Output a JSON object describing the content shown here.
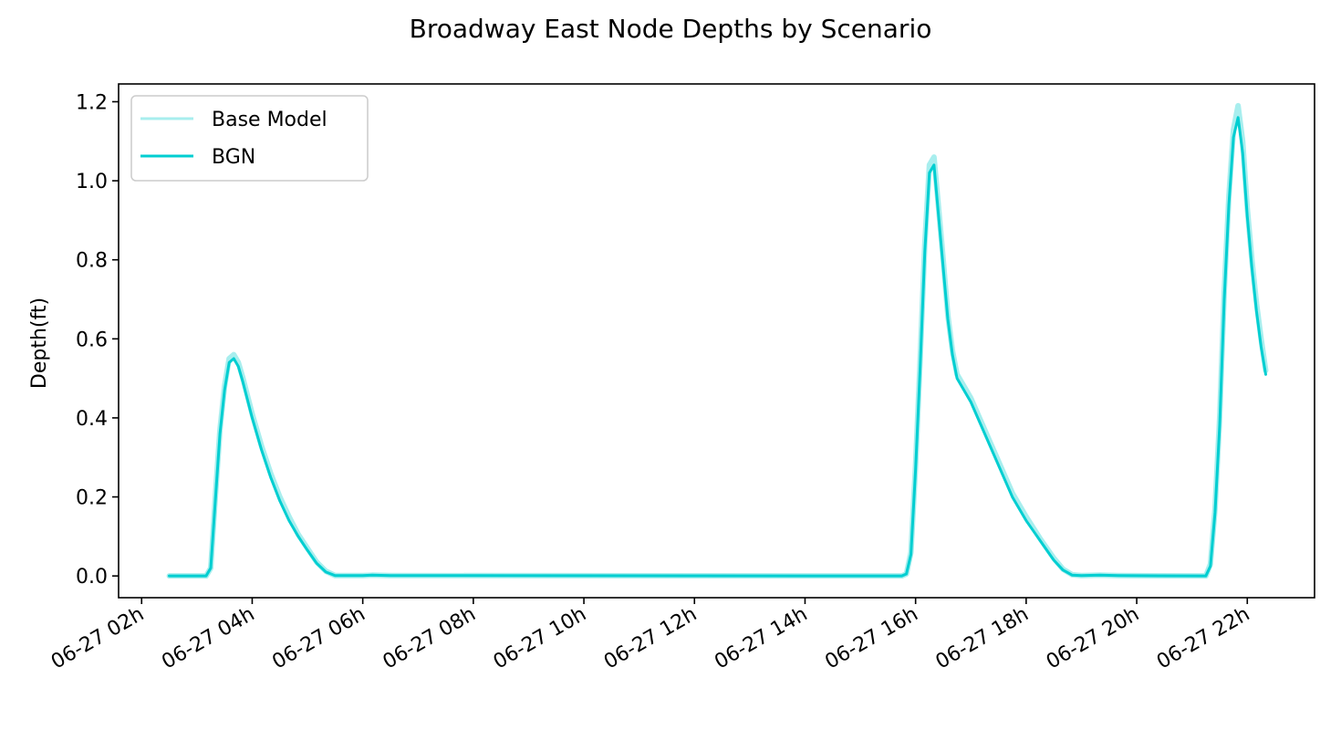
{
  "chart_data": {
    "type": "line",
    "title": "Broadway East Node Depths by Scenario",
    "xlabel": "",
    "ylabel": "Depth(ft)",
    "xlim": [
      "06-27 01:35",
      "06-27 23:13"
    ],
    "ylim": [
      -0.055,
      1.245
    ],
    "xticks": [
      "06-27 02h",
      "06-27 04h",
      "06-27 06h",
      "06-27 08h",
      "06-27 10h",
      "06-27 12h",
      "06-27 14h",
      "06-27 16h",
      "06-27 18h",
      "06-27 20h",
      "06-27 22h"
    ],
    "yticks": [
      "0.0",
      "0.2",
      "0.4",
      "0.6",
      "0.8",
      "1.0",
      "1.2"
    ],
    "grid": false,
    "legend_position": "top-left",
    "series": [
      {
        "name": "Base Model",
        "color": "#a8eeee",
        "points": [
          [
            "06-27 02:30",
            0
          ],
          [
            "06-27 03:10",
            0
          ],
          [
            "06-27 03:15",
            0.02
          ],
          [
            "06-27 03:20",
            0.2
          ],
          [
            "06-27 03:25",
            0.37
          ],
          [
            "06-27 03:30",
            0.48
          ],
          [
            "06-27 03:35",
            0.55
          ],
          [
            "06-27 03:40",
            0.56
          ],
          [
            "06-27 03:45",
            0.54
          ],
          [
            "06-27 03:50",
            0.5
          ],
          [
            "06-27 04:00",
            0.41
          ],
          [
            "06-27 04:10",
            0.33
          ],
          [
            "06-27 04:20",
            0.26
          ],
          [
            "06-27 04:30",
            0.2
          ],
          [
            "06-27 04:40",
            0.15
          ],
          [
            "06-27 04:50",
            0.105
          ],
          [
            "06-27 05:00",
            0.07
          ],
          [
            "06-27 05:10",
            0.035
          ],
          [
            "06-27 05:20",
            0.012
          ],
          [
            "06-27 05:30",
            0.001
          ],
          [
            "06-27 06:00",
            0.001
          ],
          [
            "06-27 06:10",
            0.002
          ],
          [
            "06-27 06:30",
            0.001
          ],
          [
            "06-27 15:45",
            0
          ],
          [
            "06-27 15:50",
            0.005
          ],
          [
            "06-27 15:55",
            0.06
          ],
          [
            "06-27 16:00",
            0.28
          ],
          [
            "06-27 16:05",
            0.55
          ],
          [
            "06-27 16:10",
            0.84
          ],
          [
            "06-27 16:15",
            1.04
          ],
          [
            "06-27 16:20",
            1.06
          ],
          [
            "06-27 16:25",
            0.93
          ],
          [
            "06-27 16:30",
            0.8
          ],
          [
            "06-27 16:35",
            0.66
          ],
          [
            "06-27 16:40",
            0.57
          ],
          [
            "06-27 16:45",
            0.51
          ],
          [
            "06-27 17:00",
            0.45
          ],
          [
            "06-27 17:15",
            0.37
          ],
          [
            "06-27 17:30",
            0.29
          ],
          [
            "06-27 17:45",
            0.21
          ],
          [
            "06-27 18:00",
            0.15
          ],
          [
            "06-27 18:15",
            0.095
          ],
          [
            "06-27 18:30",
            0.045
          ],
          [
            "06-27 18:40",
            0.017
          ],
          [
            "06-27 18:50",
            0.003
          ],
          [
            "06-27 19:00",
            0.001
          ],
          [
            "06-27 19:20",
            0.002
          ],
          [
            "06-27 19:40",
            0.001
          ],
          [
            "06-27 21:15",
            0
          ],
          [
            "06-27 21:20",
            0.03
          ],
          [
            "06-27 21:25",
            0.17
          ],
          [
            "06-27 21:30",
            0.4
          ],
          [
            "06-27 21:35",
            0.72
          ],
          [
            "06-27 21:40",
            0.96
          ],
          [
            "06-27 21:45",
            1.13
          ],
          [
            "06-27 21:50",
            1.19
          ],
          [
            "06-27 21:55",
            1.1
          ],
          [
            "06-27 22:00",
            0.93
          ],
          [
            "06-27 22:05",
            0.8
          ],
          [
            "06-27 22:10",
            0.69
          ],
          [
            "06-27 22:15",
            0.6
          ],
          [
            "06-27 22:20",
            0.52
          ]
        ]
      },
      {
        "name": "BGN",
        "color": "#00ced1",
        "points": [
          [
            "06-27 02:30",
            0
          ],
          [
            "06-27 03:10",
            0
          ],
          [
            "06-27 03:15",
            0.02
          ],
          [
            "06-27 03:20",
            0.19
          ],
          [
            "06-27 03:25",
            0.36
          ],
          [
            "06-27 03:30",
            0.47
          ],
          [
            "06-27 03:35",
            0.54
          ],
          [
            "06-27 03:40",
            0.55
          ],
          [
            "06-27 03:45",
            0.53
          ],
          [
            "06-27 03:50",
            0.49
          ],
          [
            "06-27 04:00",
            0.4
          ],
          [
            "06-27 04:10",
            0.32
          ],
          [
            "06-27 04:20",
            0.25
          ],
          [
            "06-27 04:30",
            0.19
          ],
          [
            "06-27 04:40",
            0.14
          ],
          [
            "06-27 04:50",
            0.1
          ],
          [
            "06-27 05:00",
            0.065
          ],
          [
            "06-27 05:10",
            0.032
          ],
          [
            "06-27 05:20",
            0.01
          ],
          [
            "06-27 05:30",
            0.001
          ],
          [
            "06-27 06:00",
            0.001
          ],
          [
            "06-27 06:10",
            0.002
          ],
          [
            "06-27 06:30",
            0.001
          ],
          [
            "06-27 15:45",
            0
          ],
          [
            "06-27 15:50",
            0.005
          ],
          [
            "06-27 15:55",
            0.055
          ],
          [
            "06-27 16:00",
            0.27
          ],
          [
            "06-27 16:05",
            0.53
          ],
          [
            "06-27 16:10",
            0.82
          ],
          [
            "06-27 16:15",
            1.02
          ],
          [
            "06-27 16:20",
            1.04
          ],
          [
            "06-27 16:25",
            0.91
          ],
          [
            "06-27 16:30",
            0.78
          ],
          [
            "06-27 16:35",
            0.65
          ],
          [
            "06-27 16:40",
            0.56
          ],
          [
            "06-27 16:45",
            0.5
          ],
          [
            "06-27 17:00",
            0.44
          ],
          [
            "06-27 17:15",
            0.36
          ],
          [
            "06-27 17:30",
            0.28
          ],
          [
            "06-27 17:45",
            0.2
          ],
          [
            "06-27 18:00",
            0.14
          ],
          [
            "06-27 18:15",
            0.09
          ],
          [
            "06-27 18:30",
            0.04
          ],
          [
            "06-27 18:40",
            0.015
          ],
          [
            "06-27 18:50",
            0.002
          ],
          [
            "06-27 19:00",
            0.001
          ],
          [
            "06-27 19:20",
            0.002
          ],
          [
            "06-27 19:40",
            0.001
          ],
          [
            "06-27 21:15",
            0
          ],
          [
            "06-27 21:20",
            0.025
          ],
          [
            "06-27 21:25",
            0.16
          ],
          [
            "06-27 21:30",
            0.38
          ],
          [
            "06-27 21:35",
            0.7
          ],
          [
            "06-27 21:40",
            0.94
          ],
          [
            "06-27 21:45",
            1.11
          ],
          [
            "06-27 21:50",
            1.16
          ],
          [
            "06-27 21:55",
            1.07
          ],
          [
            "06-27 22:00",
            0.91
          ],
          [
            "06-27 22:05",
            0.78
          ],
          [
            "06-27 22:10",
            0.67
          ],
          [
            "06-27 22:15",
            0.58
          ],
          [
            "06-27 22:20",
            0.51
          ]
        ]
      }
    ]
  }
}
